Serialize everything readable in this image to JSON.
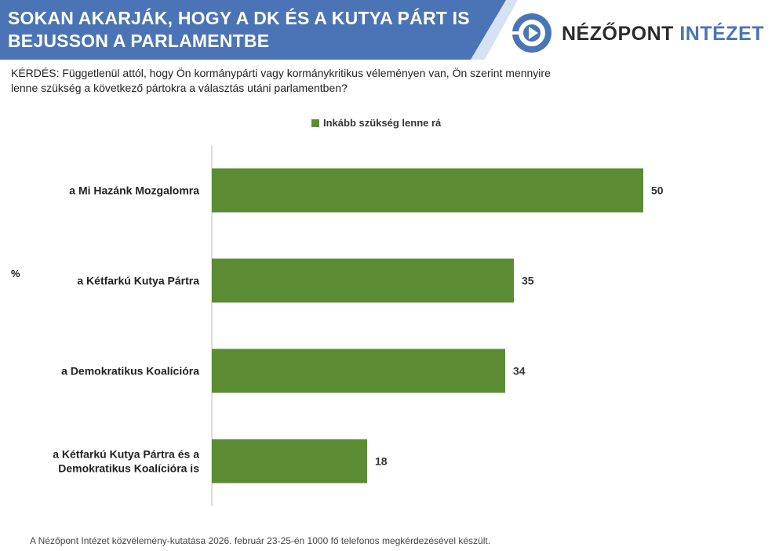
{
  "header": {
    "title_line1": "SOKAN AKARJÁK, HOGY A DK ÉS  A KUTYA PÁRT IS",
    "title_line2": "BEJUSSON A PARLAMENTBE",
    "banner_color": "#4a74b5"
  },
  "logo": {
    "icon": "nezopont-logo-icon",
    "name_part1": "NÉZŐPONT",
    "name_part2": "INTÉZET"
  },
  "question": {
    "line1": "KÉRDÉS: Függetlenül attól, hogy Ön kormánypárti vagy kormánykritikus véleményen van, Ön szerint mennyire",
    "line2": "lenne szükség a következő pártokra a választás utáni parlamentben?"
  },
  "footer": "A Nézőpont Intézet közvélemény-kutatása 2026. február 23-25-én 1000 fő telefonos megkérdezésével készült.",
  "chart_data": {
    "type": "bar",
    "orientation": "horizontal",
    "unit_label": "%",
    "legend_placement": "top",
    "categories": [
      [
        "a Mi Hazánk Mozgalomra"
      ],
      [
        "a Kétfarkú Kutya Pártra"
      ],
      [
        "a Demokratikus Koalícióra"
      ],
      [
        "a Kétfarkú Kutya Pártra és a",
        "Demokratikus Koalícióra is"
      ]
    ],
    "series": [
      {
        "name": "Inkább szükség lenne rá",
        "values": [
          50,
          35,
          34,
          18
        ],
        "color": "#5b8b33"
      }
    ],
    "xlim": [
      0,
      60
    ],
    "grid": false
  }
}
